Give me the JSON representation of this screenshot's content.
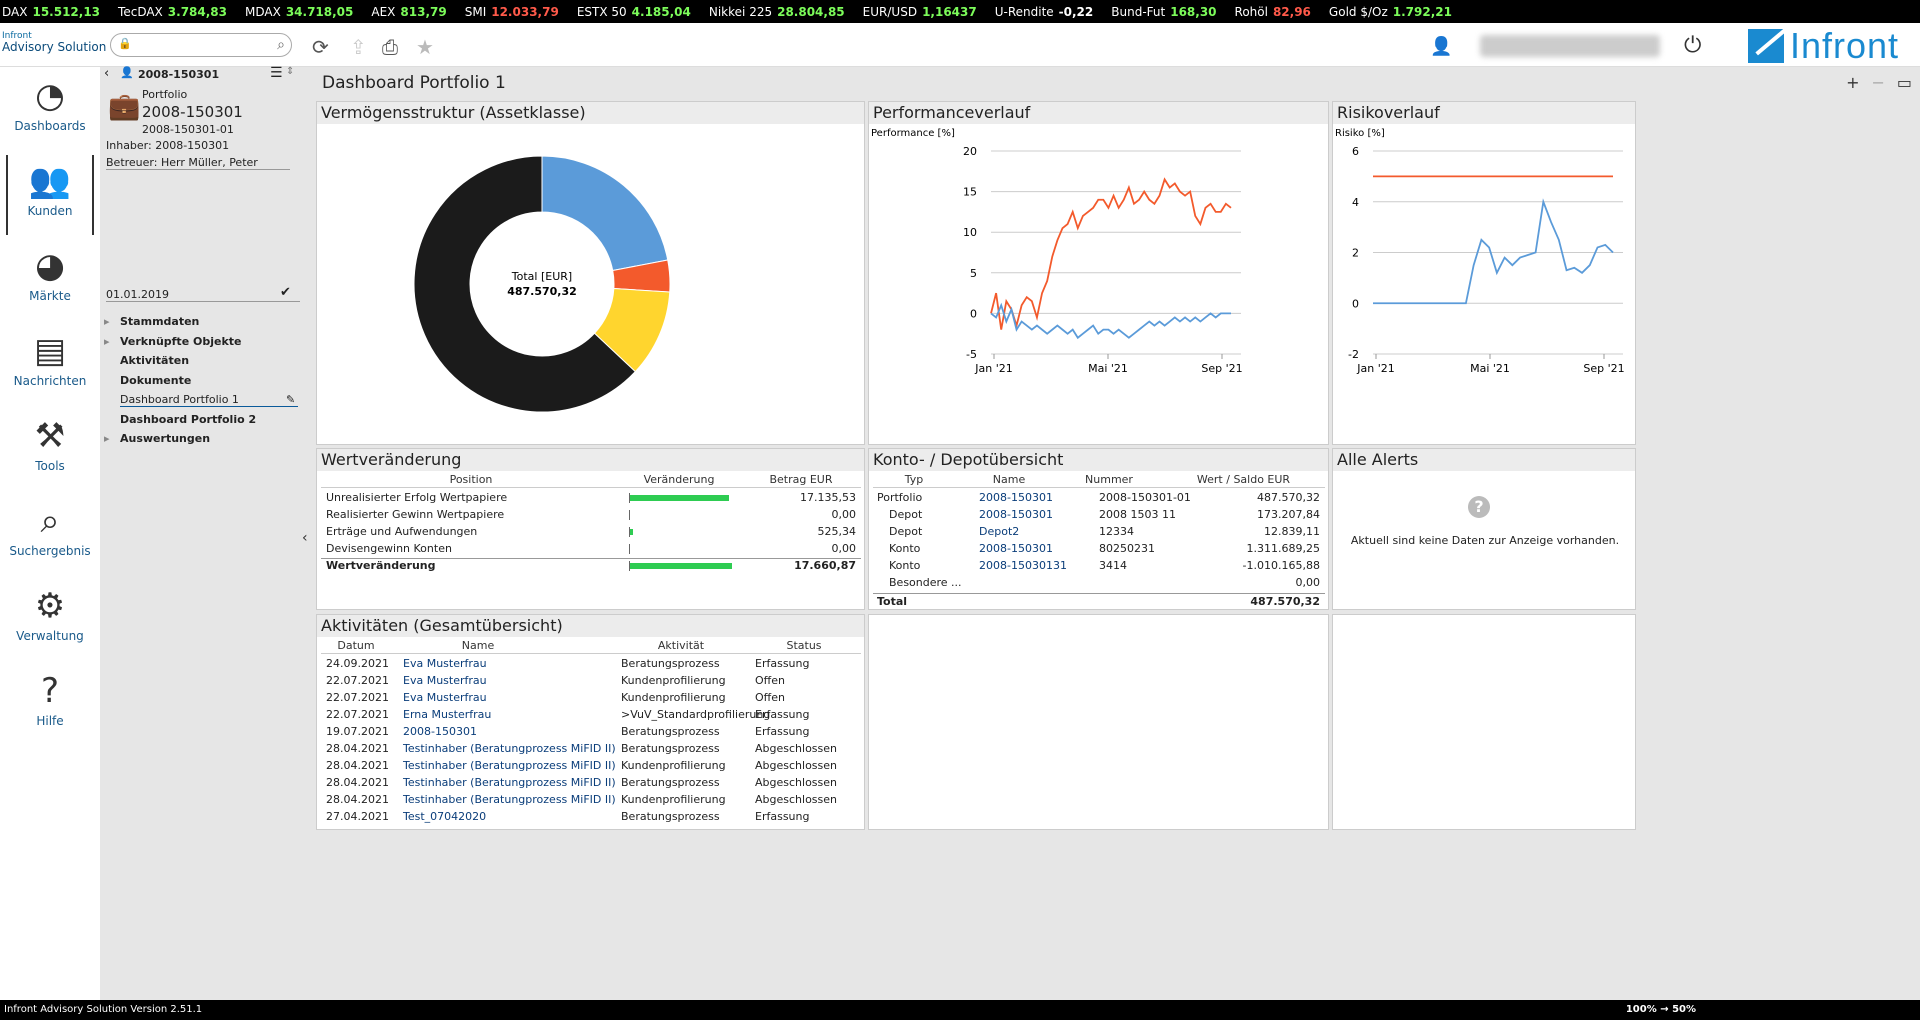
{
  "ticker": [
    {
      "name": "DAX",
      "value": "15.512,13",
      "dir": "up"
    },
    {
      "name": "TecDAX",
      "value": "3.784,83",
      "dir": "up"
    },
    {
      "name": "MDAX",
      "value": "34.718,05",
      "dir": "up"
    },
    {
      "name": "AEX",
      "value": "813,79",
      "dir": "up"
    },
    {
      "name": "SMI",
      "value": "12.033,79",
      "dir": "dn"
    },
    {
      "name": "ESTX 50",
      "value": "4.185,04",
      "dir": "up"
    },
    {
      "name": "Nikkei 225",
      "value": "28.804,85",
      "dir": "up"
    },
    {
      "name": "EUR/USD",
      "value": "1,16437",
      "dir": "up"
    },
    {
      "name": "U-Rendite",
      "value": "-0,22",
      "dir": "none"
    },
    {
      "name": "Bund-Fut",
      "value": "168,30",
      "dir": "up"
    },
    {
      "name": "Rohöl",
      "value": "82,96",
      "dir": "dn"
    },
    {
      "name": "Gold $/Oz",
      "value": "1.792,21",
      "dir": "up"
    }
  ],
  "app": {
    "brand_small": "Infront",
    "brand_sub": "Advisory Solution",
    "brand": "Infront",
    "version": "Infront Advisory Solution Version 2.51.1",
    "zoom": "100% → 50%"
  },
  "nav": [
    {
      "label": "Dashboards",
      "icon": "gauge-icon",
      "glyph": "◔"
    },
    {
      "label": "Kunden",
      "icon": "customers-icon",
      "glyph": "👥"
    },
    {
      "label": "Märkte",
      "icon": "pie-chart-icon",
      "glyph": "◕"
    },
    {
      "label": "Nachrichten",
      "icon": "newspaper-icon",
      "glyph": "▤"
    },
    {
      "label": "Tools",
      "icon": "tools-icon",
      "glyph": "⚒"
    },
    {
      "label": "Suchergebnis",
      "icon": "search-results-icon",
      "glyph": "⌕"
    },
    {
      "label": "Verwaltung",
      "icon": "gears-icon",
      "glyph": "⚙"
    },
    {
      "label": "Hilfe",
      "icon": "help-icon",
      "glyph": "?"
    }
  ],
  "panel": {
    "crumb": "2008-150301",
    "type": "Portfolio",
    "title": "2008-150301",
    "sub": "2008-150301-01",
    "owner": "Inhaber: 2008-150301",
    "advisor": "Betreuer: Herr Müller, Peter",
    "date": "01.01.2019",
    "tree": [
      {
        "label": "Stammdaten",
        "expand": true,
        "bold": true
      },
      {
        "label": "Verknüpfte Objekte",
        "expand": true,
        "bold": true
      },
      {
        "label": "Aktivitäten",
        "expand": false,
        "bold": true
      },
      {
        "label": "Dokumente",
        "expand": false,
        "bold": true
      },
      {
        "label": "Dashboard Portfolio 1",
        "expand": false,
        "bold": false,
        "selected": true
      },
      {
        "label": "Dashboard Portfolio 2",
        "expand": false,
        "bold": true
      },
      {
        "label": "Auswertungen",
        "expand": true,
        "bold": true
      }
    ]
  },
  "dashboard": {
    "title": "Dashboard Portfolio 1"
  },
  "cards": {
    "asset": "Vermögensstruktur (Assetklasse)",
    "perf": "Performanceverlauf",
    "risk": "Risikoverlauf",
    "wert": "Wertveränderung",
    "konto": "Konto- / Depotübersicht",
    "alerts": "Alle Alerts",
    "akt": "Aktivitäten (Gesamtübersicht)"
  },
  "donut": {
    "center_label": "Total [EUR]",
    "center_value": "487.570,32",
    "slices": [
      {
        "value": 22,
        "color": "#5b9bd9"
      },
      {
        "value": 4,
        "color": "#f35a2c"
      },
      {
        "value": 11,
        "color": "#ffd52e"
      },
      {
        "value": 63,
        "color": "#1b1b1b"
      }
    ]
  },
  "chart_data": [
    {
      "type": "line",
      "ylabel": "Performance [%]",
      "ylim": [
        -5,
        20
      ],
      "yticks": [
        -5,
        0,
        5,
        10,
        15,
        20
      ],
      "xticks": [
        "Jan '21",
        "Mai '21",
        "Sep '21"
      ],
      "series": [
        {
          "color": "#f35a2c",
          "values": [
            0,
            2.5,
            -2,
            1.5,
            0.5,
            -1.5,
            1,
            2,
            1.5,
            -0.5,
            2.5,
            4,
            7,
            9,
            10.5,
            11,
            12.5,
            10.5,
            12,
            12.5,
            13,
            14,
            14,
            13,
            14.5,
            13,
            14,
            15.5,
            13.5,
            14,
            15,
            14,
            13.5,
            14.5,
            16.5,
            15.5,
            16,
            15,
            14.5,
            15,
            12,
            11,
            13,
            13.5,
            12.5,
            12.5,
            13.5,
            13
          ]
        },
        {
          "color": "#5b9bd9",
          "values": [
            0,
            -0.5,
            1,
            -1,
            0.5,
            -2,
            -1,
            -1.5,
            -2,
            -1.5,
            -2,
            -2.5,
            -2,
            -1.5,
            -2,
            -2.5,
            -2,
            -3,
            -2.5,
            -2,
            -1.5,
            -2.5,
            -2,
            -2,
            -2.5,
            -2,
            -2.5,
            -3,
            -2.5,
            -2,
            -1.5,
            -1,
            -1.5,
            -1,
            -1.5,
            -1,
            -0.5,
            -1,
            -0.5,
            -1,
            -0.5,
            -1,
            -0.5,
            0,
            -0.5,
            0,
            0,
            0
          ]
        }
      ]
    },
    {
      "type": "line",
      "ylabel": "Risiko [%]",
      "ylim": [
        -2,
        6
      ],
      "yticks": [
        -2,
        0,
        2,
        4,
        6
      ],
      "xticks": [
        "Jan '21",
        "Mai '21",
        "Sep '21"
      ],
      "series": [
        {
          "color": "#f35a2c",
          "values": [
            5,
            5,
            5,
            5,
            5,
            5,
            5,
            5,
            5,
            5,
            5,
            5,
            5,
            5,
            5,
            5,
            5,
            5,
            5,
            5,
            5,
            5,
            5,
            5,
            5,
            5,
            5,
            5,
            5,
            5,
            5,
            5
          ]
        },
        {
          "color": "#5b9bd9",
          "values": [
            0,
            0,
            0,
            0,
            0,
            0,
            0,
            0,
            0,
            0,
            0,
            0,
            0,
            1.5,
            2.5,
            2.2,
            1.2,
            1.8,
            1.5,
            1.8,
            1.9,
            2,
            4,
            3.2,
            2.5,
            1.3,
            1.4,
            1.2,
            1.5,
            2.2,
            2.3,
            2
          ]
        }
      ]
    }
  ],
  "wert": {
    "headers": [
      "Position",
      "Veränderung",
      "Betrag EUR"
    ],
    "rows": [
      {
        "pos": "Unrealisierter Erfolg Wertpapiere",
        "bar": 0.9,
        "amt": "17.135,53",
        "bold": false
      },
      {
        "pos": "Realisierter Gewinn Wertpapiere",
        "bar": 0.0,
        "amt": "0,00",
        "bold": false
      },
      {
        "pos": "Erträge und Aufwendungen",
        "bar": 0.03,
        "amt": "525,34",
        "bold": false
      },
      {
        "pos": "Devisengewinn Konten",
        "bar": 0.0,
        "amt": "0,00",
        "bold": false
      },
      {
        "pos": "Wertveränderung",
        "bar": 0.93,
        "amt": "17.660,87",
        "bold": true
      }
    ]
  },
  "konto": {
    "headers": [
      "Typ",
      "Name",
      "Nummer",
      "Wert / Saldo EUR"
    ],
    "rows": [
      {
        "typ": "Portfolio",
        "name": "2008-150301",
        "num": "2008-150301-01",
        "val": "487.570,32"
      },
      {
        "typ": "Depot",
        "name": "2008-150301",
        "num": "2008 1503 11",
        "val": "173.207,84"
      },
      {
        "typ": "Depot",
        "name": "Depot2",
        "num": "12334",
        "val": "12.839,11"
      },
      {
        "typ": "Konto",
        "name": "2008-150301",
        "num": "80250231",
        "val": "1.311.689,25"
      },
      {
        "typ": "Konto",
        "name": "2008-15030131",
        "num": "3414",
        "val": "-1.010.165,88"
      },
      {
        "typ": "Besondere ...",
        "name": "",
        "num": "",
        "val": "0,00"
      }
    ],
    "total_label": "Total",
    "total": "487.570,32"
  },
  "alerts": {
    "empty": "Aktuell sind keine Daten zur Anzeige vorhanden."
  },
  "akt": {
    "headers": [
      "Datum",
      "Name",
      "Aktivität",
      "Status"
    ],
    "rows": [
      {
        "d": "24.09.2021",
        "n": "Eva Musterfrau",
        "a": "Beratungsprozess",
        "s": "Erfassung"
      },
      {
        "d": "22.07.2021",
        "n": "Eva Musterfrau",
        "a": "Kundenprofilierung",
        "s": "Offen"
      },
      {
        "d": "22.07.2021",
        "n": "Eva Musterfrau",
        "a": "Kundenprofilierung",
        "s": "Offen"
      },
      {
        "d": "22.07.2021",
        "n": "Erna Musterfrau",
        "a": ">VuV_Standardprofilierung",
        "s": "Erfassung"
      },
      {
        "d": "19.07.2021",
        "n": "2008-150301",
        "a": "Beratungsprozess",
        "s": "Erfassung"
      },
      {
        "d": "28.04.2021",
        "n": "Testinhaber (Beratungprozess MiFID II)",
        "a": "Beratungsprozess",
        "s": "Abgeschlossen"
      },
      {
        "d": "28.04.2021",
        "n": "Testinhaber (Beratungprozess MiFID II)",
        "a": "Kundenprofilierung",
        "s": "Abgeschlossen"
      },
      {
        "d": "28.04.2021",
        "n": "Testinhaber (Beratungprozess MiFID II)",
        "a": "Beratungsprozess",
        "s": "Abgeschlossen"
      },
      {
        "d": "28.04.2021",
        "n": "Testinhaber (Beratungprozess MiFID II)",
        "a": "Kundenprofilierung",
        "s": "Abgeschlossen"
      },
      {
        "d": "27.04.2021",
        "n": "Test_07042020",
        "a": "Beratungsprozess",
        "s": "Erfassung"
      }
    ]
  }
}
